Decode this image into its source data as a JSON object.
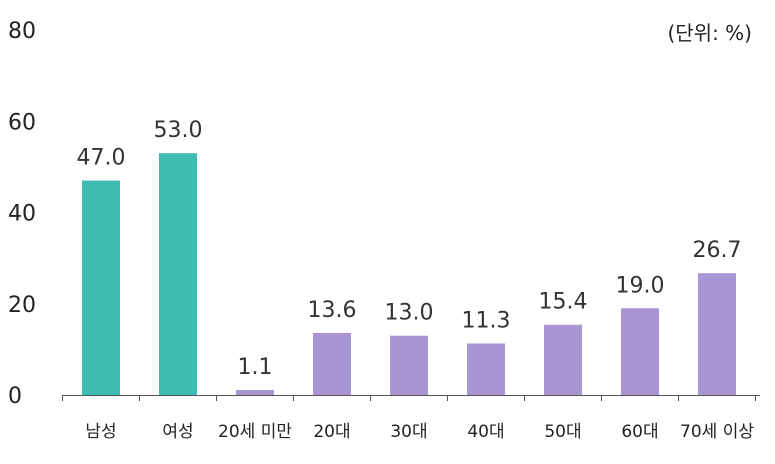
{
  "chart_data": {
    "type": "bar",
    "unit_note": "(단위: %)",
    "categories": [
      "남성",
      "여성",
      "20세 미만",
      "20대",
      "30대",
      "40대",
      "50대",
      "60대",
      "70세 이상"
    ],
    "values": [
      47.0,
      53.0,
      1.1,
      13.6,
      13.0,
      11.3,
      15.4,
      19.0,
      26.7
    ],
    "value_labels": [
      "47.0",
      "53.0",
      "1.1",
      "13.6",
      "13.0",
      "11.3",
      "15.4",
      "19.0",
      "26.7"
    ],
    "bar_colors": [
      "#3dbdb1",
      "#3dbdb1",
      "#a796d3",
      "#a796d3",
      "#a796d3",
      "#a796d3",
      "#a796d3",
      "#a796d3",
      "#a796d3"
    ],
    "ylim": [
      0,
      80
    ],
    "yticks": [
      "0",
      "20",
      "40",
      "60",
      "80"
    ],
    "ytick_values": [
      0,
      20,
      40,
      60,
      80
    ],
    "grid": false,
    "title": "",
    "xlabel": "",
    "ylabel": ""
  }
}
